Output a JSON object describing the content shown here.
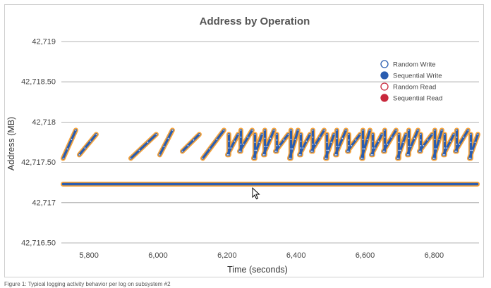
{
  "chart_data": {
    "type": "scatter",
    "title": "Address by Operation",
    "xlabel": "Time (seconds)",
    "ylabel": "Address (MB)",
    "xlim": [
      5720,
      6930
    ],
    "ylim": [
      42716.5,
      42719
    ],
    "x_ticks": [
      5800,
      6000,
      6200,
      6400,
      6600,
      6800
    ],
    "x_tick_labels": [
      "5,800",
      "6,000",
      "6,200",
      "6,400",
      "6,600",
      "6,800"
    ],
    "y_ticks": [
      42716.5,
      42717,
      42717.5,
      42718,
      42718.5,
      42719
    ],
    "y_tick_labels": [
      "42,716.50",
      "42,717",
      "42,717.50",
      "42,718",
      "42,718.50",
      "42,719"
    ],
    "grid": "horizontal",
    "legend_position": "top-right",
    "series": [
      {
        "name": "Random Write",
        "marker": "open-circle",
        "color": "#2a5db0",
        "points": []
      },
      {
        "name": "Sequential Write",
        "marker": "filled-circle",
        "color": "#2a5db0",
        "constant_band": {
          "y": 42717.23,
          "x_range": [
            5725,
            6925
          ]
        },
        "ramp_band": {
          "y_range": [
            42717.55,
            42717.9
          ],
          "x_range": [
            5725,
            6925
          ]
        }
      },
      {
        "name": "Random Read",
        "marker": "open-circle",
        "color": "#c8283c",
        "points": []
      },
      {
        "name": "Sequential Read",
        "marker": "filled-circle",
        "color": "#c8283c",
        "points": []
      }
    ],
    "highlight_color": "#f5a33c"
  },
  "caption": "Figure 1: Typical logging activity behavior per log on subsystem #2"
}
